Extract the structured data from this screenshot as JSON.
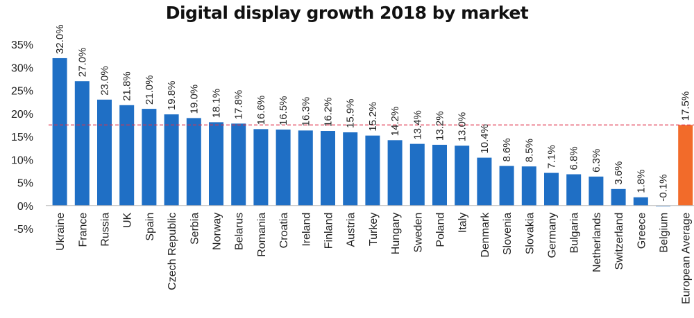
{
  "chart_data": {
    "type": "bar",
    "title": "Digital display growth 2018 by market",
    "xlabel": "",
    "ylabel": "",
    "ylim": [
      -5,
      35
    ],
    "yticks": [
      35,
      30,
      25,
      20,
      15,
      10,
      5,
      0,
      -5
    ],
    "ytick_labels": [
      "35%",
      "30%",
      "25%",
      "20%",
      "15%",
      "10%",
      "5%",
      "0%",
      "-5%"
    ],
    "categories": [
      "Ukraine",
      "France",
      "Russia",
      "UK",
      "Spain",
      "Czech Republic",
      "Serbia",
      "Norway",
      "Belarus",
      "Romania",
      "Croatia",
      "Ireland",
      "Finland",
      "Austria",
      "Turkey",
      "Hungary",
      "Sweden",
      "Poland",
      "Italy",
      "Denmark",
      "Slovenia",
      "Slovakia",
      "Germany",
      "Bulgaria",
      "Netherlands",
      "Switzerland",
      "Greece",
      "Belgium",
      "European Average"
    ],
    "values": [
      32.0,
      27.0,
      23.0,
      21.8,
      21.0,
      19.8,
      19.0,
      18.1,
      17.8,
      16.6,
      16.5,
      16.3,
      16.2,
      15.9,
      15.2,
      14.2,
      13.4,
      13.2,
      13.0,
      10.4,
      8.6,
      8.5,
      7.1,
      6.8,
      6.3,
      3.6,
      1.8,
      -0.1,
      17.5
    ],
    "value_labels": [
      "32.0%",
      "27.0%",
      "23.0%",
      "21.8%",
      "21.0%",
      "19.8%",
      "19.0%",
      "18.1%",
      "17.8%",
      "16.6%",
      "16.5%",
      "16.3%",
      "16.2%",
      "15.9%",
      "15.2%",
      "14.2%",
      "13.4%",
      "13.2%",
      "13.0%",
      "10.4%",
      "8.6%",
      "8.5%",
      "7.1%",
      "6.8%",
      "6.3%",
      "3.6%",
      "1.8%",
      "-0.1%",
      "17.5%"
    ],
    "highlight_category": "European Average",
    "reference_line": 17.5,
    "grid": false,
    "legend": "none",
    "colors": {
      "bar": "#1f6fc5",
      "highlight": "#f26b2a",
      "reference_line": "#e0314a",
      "axis": "#bbbbbb"
    }
  }
}
